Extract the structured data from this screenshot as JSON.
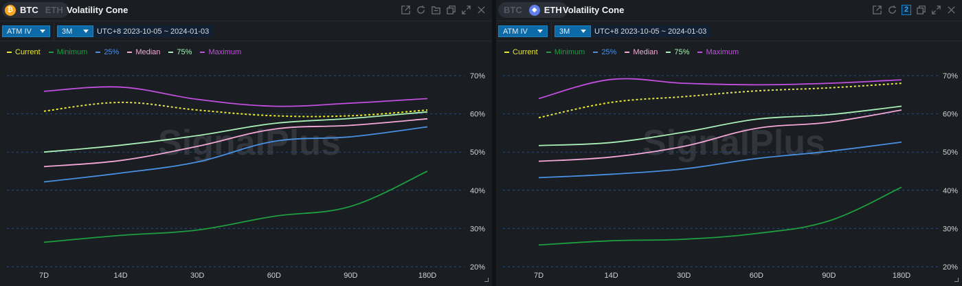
{
  "panels": [
    {
      "toggle": {
        "options": [
          "BTC",
          "ETH"
        ],
        "active": "BTC",
        "coin_icon": "bitcoin-icon",
        "coin_glyph": "₿"
      },
      "title": "Volatility Cone",
      "icons": [
        "external-link-icon",
        "refresh-icon",
        "folder-icon",
        "duplicate-icon",
        "expand-icon",
        "close-icon"
      ],
      "toolbar": {
        "metric_select": "ATM IV",
        "period_select": "3M",
        "date_range": "UTC+8 2023-10-05 ~ 2024-01-03"
      }
    },
    {
      "toggle": {
        "options": [
          "BTC",
          "ETH"
        ],
        "active": "ETH",
        "coin_icon": "ethereum-icon",
        "coin_glyph": "◆"
      },
      "title": "Volatility Cone",
      "icons": [
        "external-link-icon",
        "refresh-icon",
        "badge-2-icon",
        "duplicate-icon",
        "expand-icon",
        "close-icon"
      ],
      "badge_count": "2",
      "toolbar": {
        "metric_select": "ATM IV",
        "period_select": "3M",
        "date_range": "UTC+8 2023-10-05 ~ 2024-01-03"
      }
    }
  ],
  "colors": {
    "Current": "#e8e83a",
    "Minimum": "#1e9e3e",
    "25%": "#4a90e2",
    "Median": "#f4a8d8",
    "75%": "#a8f0b8",
    "Maximum": "#c34fe0",
    "grid": "#1e4f86",
    "watermark": "#3a3e44"
  },
  "watermark": "SignalPlus",
  "chart_data": [
    {
      "type": "line",
      "title": "BTC Volatility Cone",
      "categories": [
        "7D",
        "14D",
        "30D",
        "60D",
        "90D",
        "180D"
      ],
      "ylabel": "",
      "xlabel": "",
      "ylim": [
        20,
        70
      ],
      "yticks": [
        "20%",
        "30%",
        "40%",
        "50%",
        "60%",
        "70%"
      ],
      "ytick_values": [
        20,
        30,
        40,
        50,
        60,
        70
      ],
      "grid": true,
      "legend": "top-left",
      "series": [
        {
          "name": "Current",
          "dashed": true,
          "values": [
            60.7,
            63.0,
            61.0,
            59.5,
            59.5,
            61.0
          ]
        },
        {
          "name": "Minimum",
          "values": [
            26.4,
            28.2,
            29.6,
            33.2,
            35.8,
            45.0
          ]
        },
        {
          "name": "25%",
          "values": [
            42.2,
            44.5,
            47.4,
            52.8,
            54.0,
            56.6
          ]
        },
        {
          "name": "Median",
          "values": [
            46.2,
            47.8,
            51.5,
            56.0,
            57.0,
            58.7
          ]
        },
        {
          "name": "75%",
          "values": [
            50.0,
            51.8,
            54.3,
            57.5,
            58.8,
            60.5
          ]
        },
        {
          "name": "Maximum",
          "values": [
            65.9,
            67.0,
            63.8,
            62.0,
            62.8,
            64.0
          ]
        }
      ]
    },
    {
      "type": "line",
      "title": "ETH Volatility Cone",
      "categories": [
        "7D",
        "14D",
        "30D",
        "60D",
        "90D",
        "180D"
      ],
      "ylabel": "",
      "xlabel": "",
      "ylim": [
        20,
        70
      ],
      "yticks": [
        "20%",
        "30%",
        "40%",
        "50%",
        "60%",
        "70%"
      ],
      "ytick_values": [
        20,
        30,
        40,
        50,
        60,
        70
      ],
      "grid": true,
      "legend": "top-left",
      "series": [
        {
          "name": "Current",
          "dashed": true,
          "values": [
            59.0,
            63.0,
            64.5,
            66.0,
            66.8,
            68.0
          ]
        },
        {
          "name": "Minimum",
          "values": [
            25.7,
            26.8,
            27.2,
            28.7,
            32.0,
            40.8
          ]
        },
        {
          "name": "25%",
          "values": [
            43.3,
            44.2,
            45.6,
            48.3,
            50.2,
            52.6
          ]
        },
        {
          "name": "Median",
          "values": [
            47.6,
            48.7,
            51.5,
            56.2,
            57.8,
            61.0
          ]
        },
        {
          "name": "75%",
          "values": [
            51.7,
            52.5,
            55.2,
            58.6,
            59.8,
            62.0
          ]
        },
        {
          "name": "Maximum",
          "values": [
            64.0,
            69.0,
            68.0,
            67.6,
            68.0,
            68.9
          ]
        }
      ]
    }
  ]
}
